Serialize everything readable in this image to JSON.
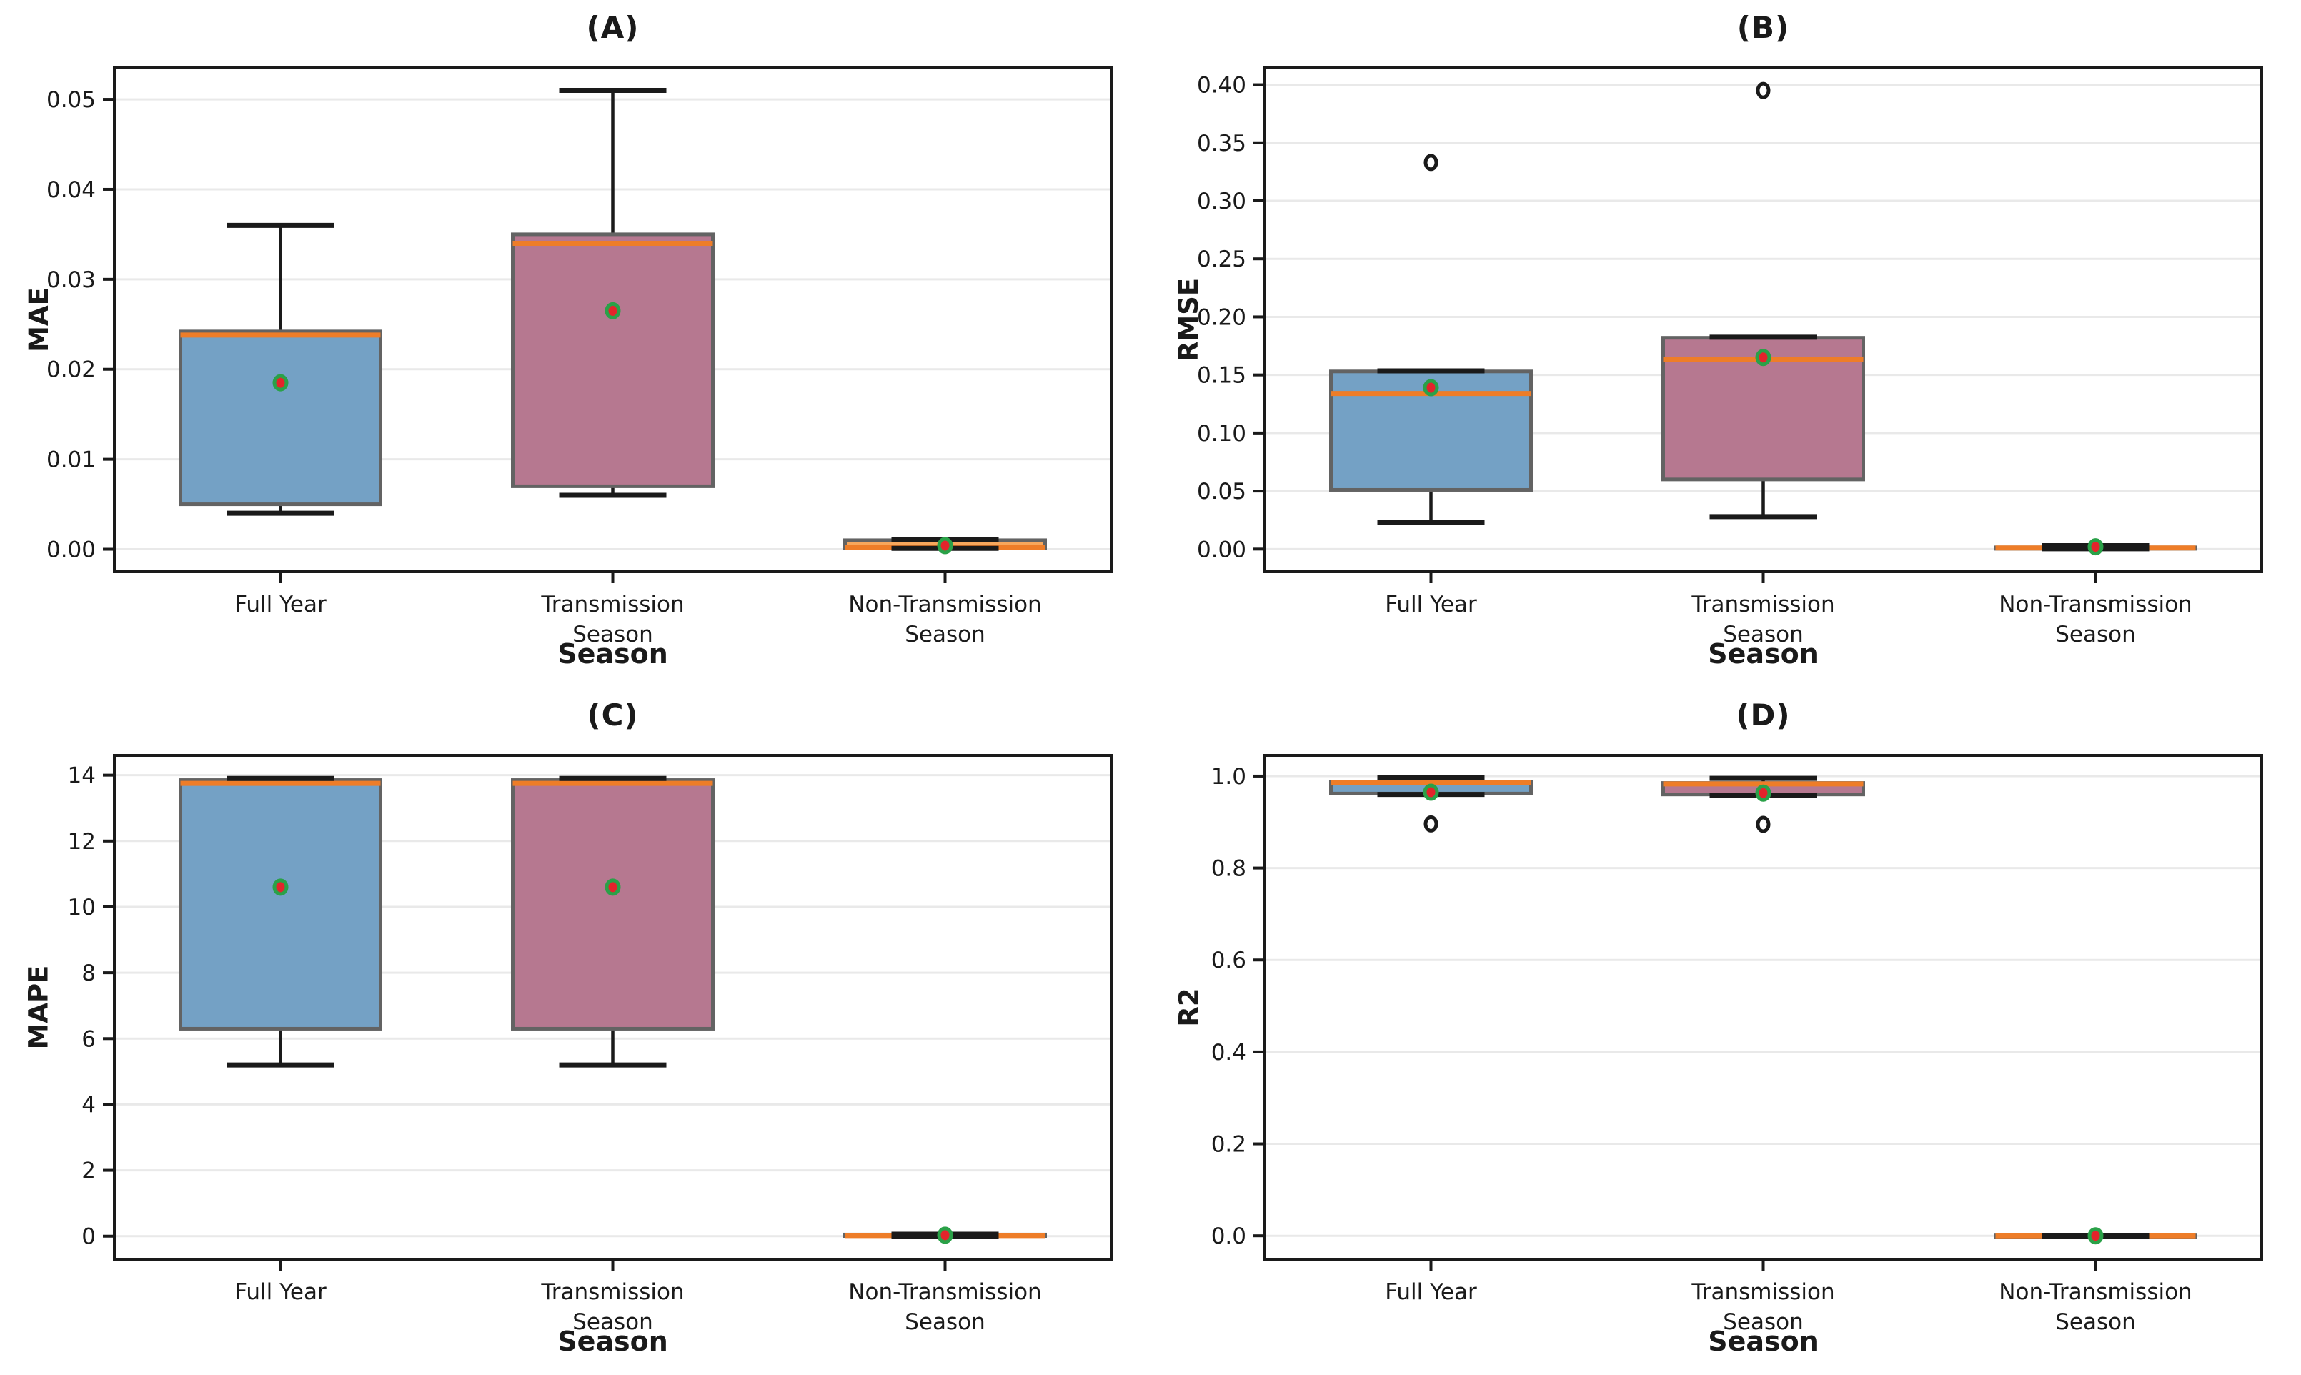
{
  "colors": {
    "frame": "#1a1a1a",
    "grid": "#e9e9e9",
    "text": "#1a1a1a",
    "box_edge": "#636363",
    "whisker": "#1a1a1a",
    "median": "#ee7d28",
    "mean_fill": "#e3242b",
    "mean_edge": "#2aa148",
    "outlier_fill": "#ffffff",
    "outlier_edge": "#1a1a1a",
    "fill_full_year": "#74a1c5",
    "fill_transmission_season": "#b67890",
    "fill_non_transmission_season": "#f7a75c"
  },
  "chart_data": [
    {
      "type": "box",
      "title": "(A)",
      "ylabel": "MAE",
      "xlabel": "Season",
      "grid": "horizontal",
      "legend": "none",
      "categories": [
        "Full Year",
        "Transmission\nSeason",
        "Non-Transmission\nSeason"
      ],
      "ylim": [
        -0.0025,
        0.0535
      ],
      "yticks": [
        0,
        0.01,
        0.02,
        0.03,
        0.04,
        0.05
      ],
      "ytick_decimals": 2,
      "boxes": [
        {
          "category": "Full Year",
          "fill": "#74a1c5",
          "whisker_low": 0.004,
          "q1": 0.005,
          "median": 0.0238,
          "q3": 0.0242,
          "whisker_high": 0.036,
          "mean": 0.0185,
          "outliers": []
        },
        {
          "category": "Transmission Season",
          "fill": "#b67890",
          "whisker_low": 0.006,
          "q1": 0.007,
          "median": 0.034,
          "q3": 0.035,
          "whisker_high": 0.051,
          "mean": 0.0265,
          "outliers": []
        },
        {
          "category": "Non-Transmission Season",
          "fill": "#f7a75c",
          "whisker_low": 0.0001,
          "q1": 0.00015,
          "median": 0.0002,
          "q3": 0.001,
          "whisker_high": 0.0011,
          "mean": 0.0004,
          "outliers": []
        }
      ]
    },
    {
      "type": "box",
      "title": "(B)",
      "ylabel": "RMSE",
      "xlabel": "Season",
      "grid": "horizontal",
      "legend": "none",
      "categories": [
        "Full Year",
        "Transmission\nSeason",
        "Non-Transmission\nSeason"
      ],
      "ylim": [
        -0.0195,
        0.4145
      ],
      "yticks": [
        0,
        0.05,
        0.1,
        0.15,
        0.2,
        0.25,
        0.3,
        0.35,
        0.4
      ],
      "ytick_decimals": 2,
      "boxes": [
        {
          "category": "Full Year",
          "fill": "#74a1c5",
          "whisker_low": 0.023,
          "q1": 0.051,
          "median": 0.134,
          "q3": 0.153,
          "whisker_high": 0.1535,
          "mean": 0.139,
          "outliers": [
            0.333
          ]
        },
        {
          "category": "Transmission Season",
          "fill": "#b67890",
          "whisker_low": 0.028,
          "q1": 0.06,
          "median": 0.163,
          "q3": 0.182,
          "whisker_high": 0.1825,
          "mean": 0.165,
          "outliers": [
            0.395
          ]
        },
        {
          "category": "Non-Transmission Season",
          "fill": "#f7a75c",
          "whisker_low": 0.0003,
          "q1": 0.0005,
          "median": 0.001,
          "q3": 0.0015,
          "whisker_high": 0.003,
          "mean": 0.002,
          "outliers": []
        }
      ]
    },
    {
      "type": "box",
      "title": "(C)",
      "ylabel": "MAPE",
      "xlabel": "Season",
      "grid": "horizontal",
      "legend": "none",
      "categories": [
        "Full Year",
        "Transmission\nSeason",
        "Non-Transmission\nSeason"
      ],
      "ylim": [
        -0.7,
        14.6
      ],
      "yticks": [
        0,
        2,
        4,
        6,
        8,
        10,
        12,
        14
      ],
      "ytick_decimals": 0,
      "boxes": [
        {
          "category": "Full Year",
          "fill": "#74a1c5",
          "whisker_low": 5.2,
          "q1": 6.3,
          "median": 13.75,
          "q3": 13.85,
          "whisker_high": 13.9,
          "mean": 10.6,
          "outliers": []
        },
        {
          "category": "Transmission Season",
          "fill": "#b67890",
          "whisker_low": 5.2,
          "q1": 6.3,
          "median": 13.75,
          "q3": 13.85,
          "whisker_high": 13.9,
          "mean": 10.6,
          "outliers": []
        },
        {
          "category": "Non-Transmission Season",
          "fill": "#f7a75c",
          "whisker_low": 0,
          "q1": 0.005,
          "median": 0.02,
          "q3": 0.05,
          "whisker_high": 0.06,
          "mean": 0.03,
          "outliers": []
        }
      ]
    },
    {
      "type": "box",
      "title": "(D)",
      "ylabel": "R2",
      "xlabel": "Season",
      "grid": "horizontal",
      "legend": "none",
      "categories": [
        "Full Year",
        "Transmission\nSeason",
        "Non-Transmission\nSeason"
      ],
      "ylim": [
        -0.051,
        1.045
      ],
      "yticks": [
        0,
        0.2,
        0.4,
        0.6,
        0.8,
        1.0
      ],
      "ytick_decimals": 1,
      "boxes": [
        {
          "category": "Full Year",
          "fill": "#74a1c5",
          "whisker_low": 0.96,
          "q1": 0.962,
          "median": 0.986,
          "q3": 0.988,
          "whisker_high": 0.997,
          "mean": 0.965,
          "outliers": [
            0.896
          ]
        },
        {
          "category": "Transmission Season",
          "fill": "#b67890",
          "whisker_low": 0.958,
          "q1": 0.96,
          "median": 0.983,
          "q3": 0.985,
          "whisker_high": 0.995,
          "mean": 0.963,
          "outliers": [
            0.895
          ]
        },
        {
          "category": "Non-Transmission Season",
          "fill": "#f7a75c",
          "whisker_low": -0.001,
          "q1": -0.0005,
          "median": 0.0,
          "q3": 0.0008,
          "whisker_high": 0.001,
          "mean": 0.0,
          "outliers": []
        }
      ]
    }
  ]
}
